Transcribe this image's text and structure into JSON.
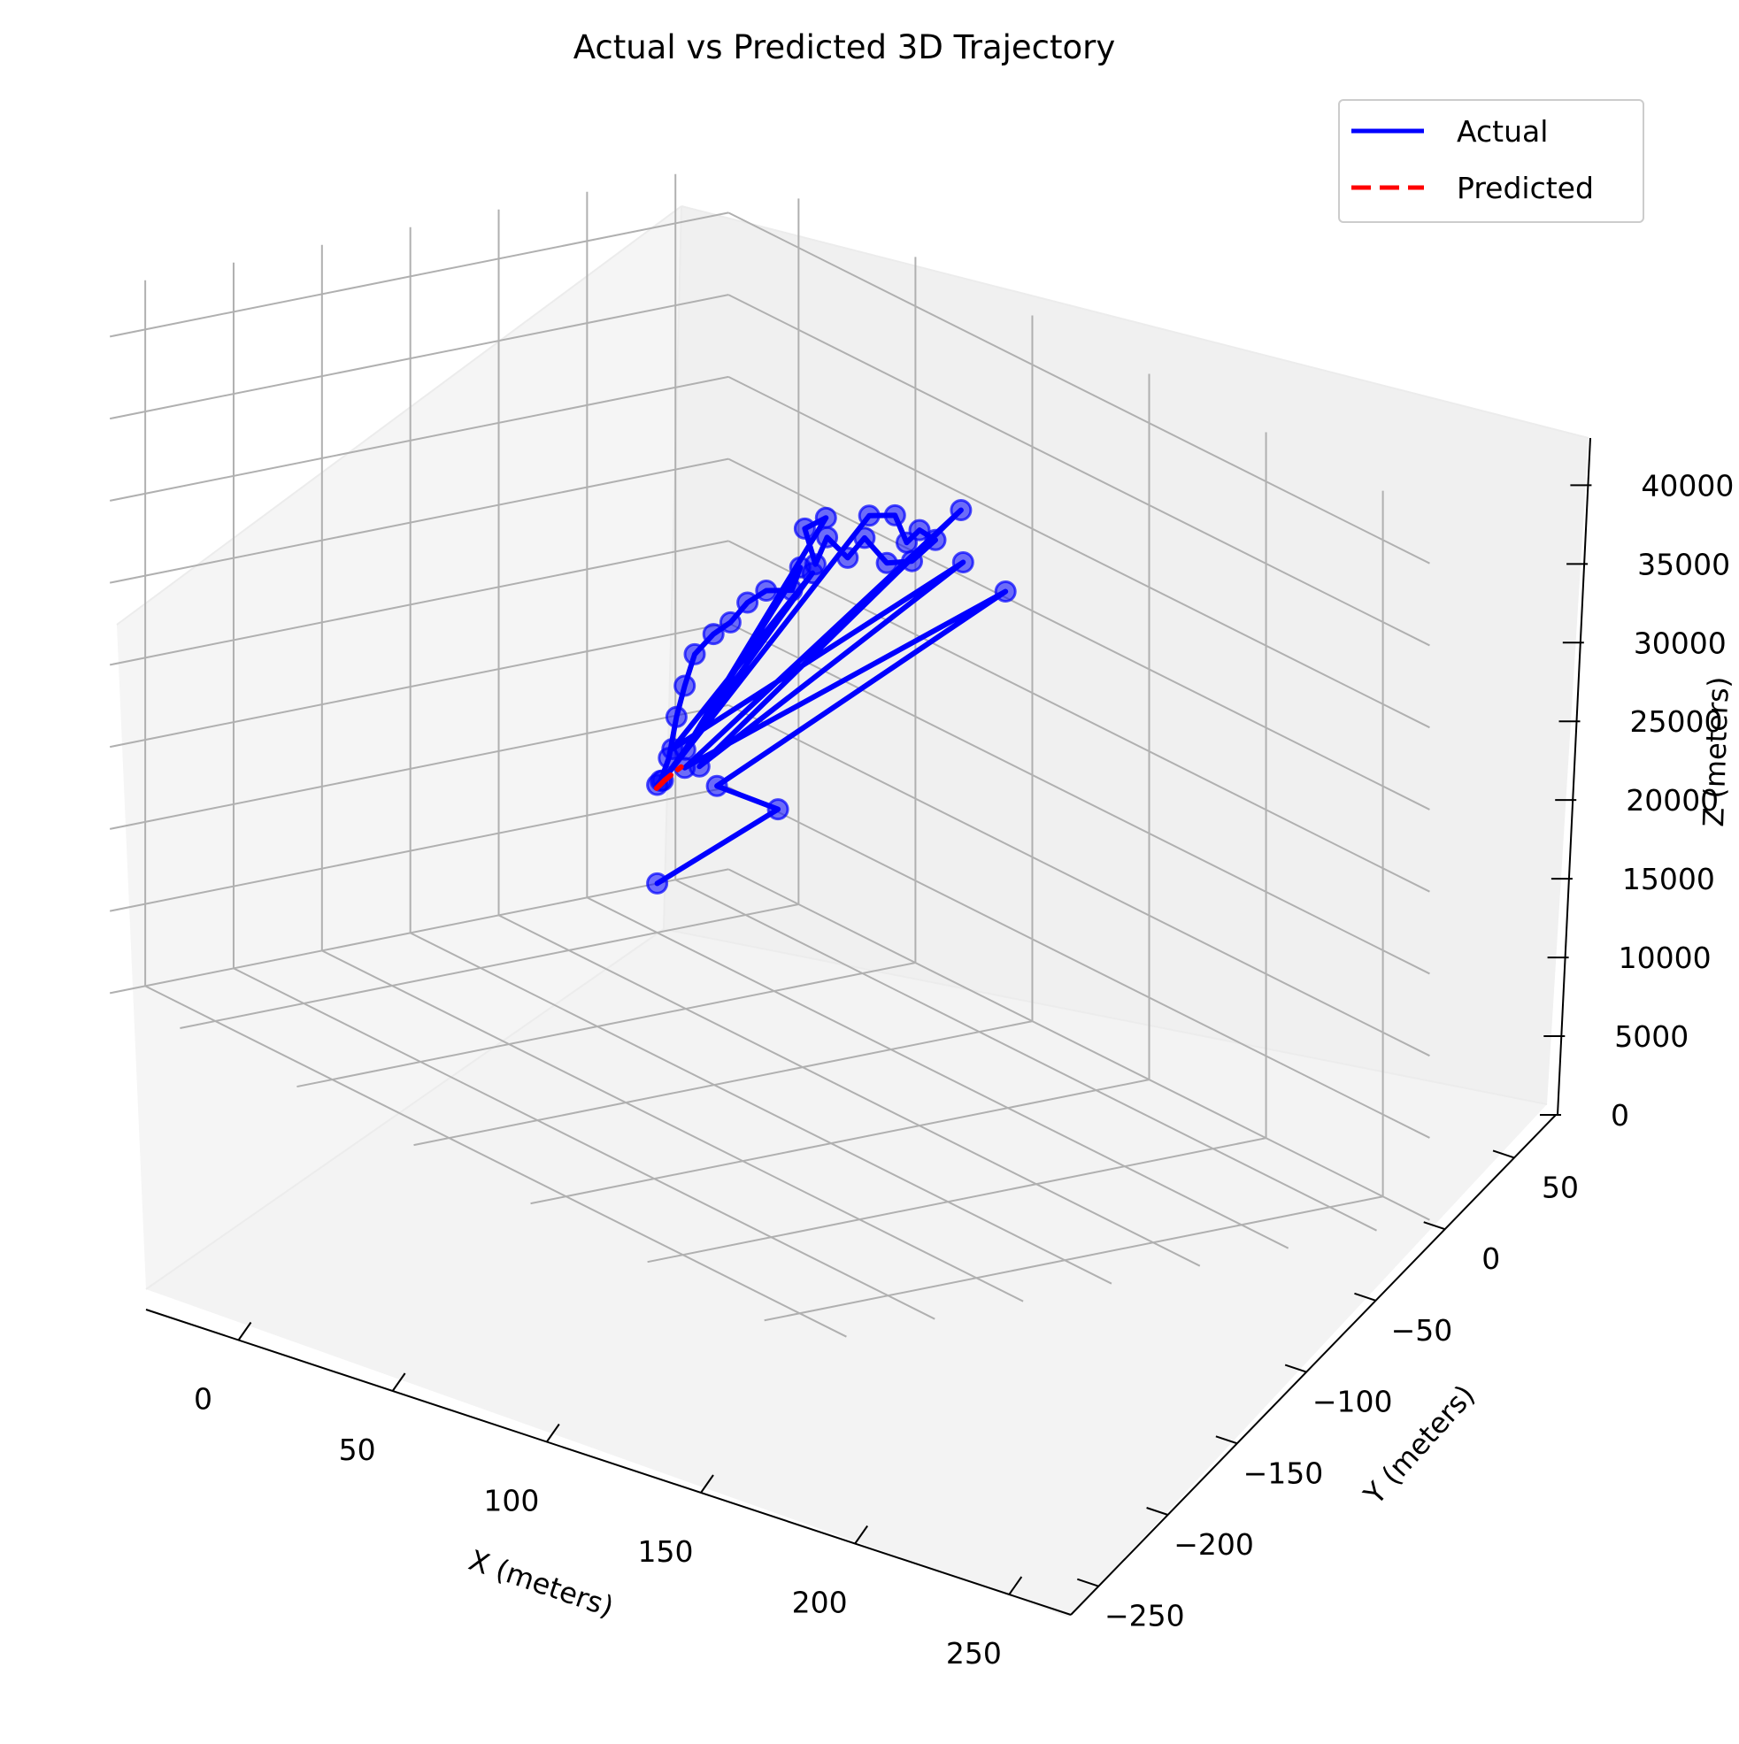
{
  "chart_data": {
    "type": "line",
    "projection": "3d",
    "title": "Actual vs Predicted 3D Trajectory",
    "xlabel": "X (meters)",
    "ylabel": "Y (meters)",
    "zlabel": "Z (meters)",
    "xlim": [
      -30,
      270
    ],
    "ylim": [
      -270,
      80
    ],
    "zlim": [
      0,
      43000
    ],
    "xticks": [
      "0",
      "50",
      "100",
      "150",
      "200",
      "250"
    ],
    "yticks": [
      "−250",
      "−200",
      "−150",
      "−100",
      "−50",
      "0",
      "50"
    ],
    "zticks": [
      "0",
      "5000",
      "10000",
      "15000",
      "20000",
      "25000",
      "30000",
      "35000",
      "40000"
    ],
    "grid": true,
    "legend_position": "top-right",
    "series": [
      {
        "name": "Actual",
        "color": "#0000ff",
        "style": "solid",
        "markers": true,
        "points": [
          [
            0,
            0,
            3000
          ],
          [
            150,
            -130,
            21000
          ],
          [
            18,
            10,
            10000
          ],
          [
            115,
            45,
            28000
          ],
          [
            8,
            5,
            10500
          ],
          [
            130,
            0,
            35000
          ],
          [
            12,
            8,
            10800
          ],
          [
            112,
            25,
            30000
          ],
          [
            5,
            2,
            11500
          ],
          [
            40,
            35,
            24000
          ],
          [
            10,
            -10,
            10200
          ],
          [
            62,
            38,
            29000
          ],
          [
            70,
            42,
            29500
          ],
          [
            78,
            38,
            28500
          ],
          [
            82,
            40,
            29500
          ],
          [
            85,
            45,
            29000
          ],
          [
            75,
            45,
            27000
          ],
          [
            68,
            40,
            26500
          ],
          [
            60,
            38,
            27500
          ],
          [
            55,
            35,
            26000
          ],
          [
            50,
            30,
            27000
          ],
          [
            45,
            30,
            25000
          ],
          [
            42,
            28,
            27000
          ],
          [
            48,
            32,
            28000
          ],
          [
            12,
            0,
            12000
          ],
          [
            40,
            28,
            24500
          ],
          [
            38,
            26,
            23000
          ],
          [
            30,
            22,
            22500
          ],
          [
            25,
            18,
            21500
          ],
          [
            20,
            15,
            20000
          ],
          [
            15,
            12,
            19000
          ],
          [
            10,
            8,
            17500
          ],
          [
            8,
            5,
            15500
          ],
          [
            6,
            3,
            13500
          ],
          [
            5,
            0,
            11000
          ],
          [
            3,
            -2,
            9500
          ],
          [
            0,
            0,
            9000
          ]
        ]
      },
      {
        "name": "Predicted",
        "color": "#ff0000",
        "style": "dashed",
        "markers": false,
        "points": [
          [
            2,
            -3,
            9000
          ],
          [
            4,
            -1,
            9600
          ],
          [
            6,
            1,
            10100
          ],
          [
            8,
            3,
            10600
          ]
        ]
      }
    ]
  }
}
